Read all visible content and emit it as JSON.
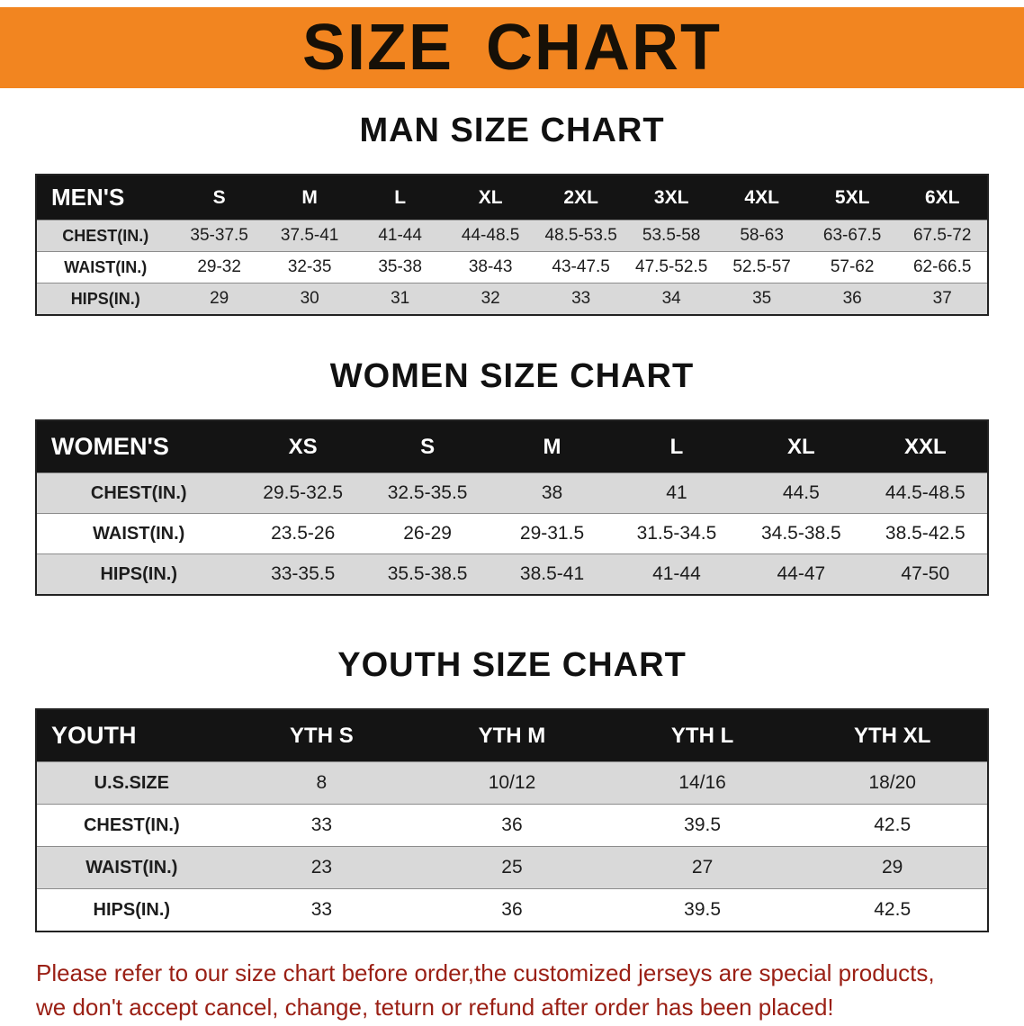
{
  "banner": {
    "title": "SIZE CHART"
  },
  "sections": [
    {
      "id": "men",
      "title": "MAN SIZE CHART",
      "header": [
        "MEN'S",
        "S",
        "M",
        "L",
        "XL",
        "2XL",
        "3XL",
        "4XL",
        "5XL",
        "6XL"
      ],
      "rows": [
        [
          "CHEST(IN.)",
          "35-37.5",
          "37.5-41",
          "41-44",
          "44-48.5",
          "48.5-53.5",
          "53.5-58",
          "58-63",
          "63-67.5",
          "67.5-72"
        ],
        [
          "WAIST(IN.)",
          "29-32",
          "32-35",
          "35-38",
          "38-43",
          "43-47.5",
          "47.5-52.5",
          "52.5-57",
          "57-62",
          "62-66.5"
        ],
        [
          "HIPS(IN.)",
          "29",
          "30",
          "31",
          "32",
          "33",
          "34",
          "35",
          "36",
          "37"
        ]
      ]
    },
    {
      "id": "women",
      "title": "WOMEN SIZE CHART",
      "header": [
        "WOMEN'S",
        "XS",
        "S",
        "M",
        "L",
        "XL",
        "XXL"
      ],
      "rows": [
        [
          "CHEST(IN.)",
          "29.5-32.5",
          "32.5-35.5",
          "38",
          "41",
          "44.5",
          "44.5-48.5"
        ],
        [
          "WAIST(IN.)",
          "23.5-26",
          "26-29",
          "29-31.5",
          "31.5-34.5",
          "34.5-38.5",
          "38.5-42.5"
        ],
        [
          "HIPS(IN.)",
          "33-35.5",
          "35.5-38.5",
          "38.5-41",
          "41-44",
          "44-47",
          "47-50"
        ]
      ]
    },
    {
      "id": "youth",
      "title": "YOUTH SIZE CHART",
      "header": [
        "YOUTH",
        "YTH S",
        "YTH M",
        "YTH L",
        "YTH XL"
      ],
      "rows": [
        [
          "U.S.SIZE",
          "8",
          "10/12",
          "14/16",
          "18/20"
        ],
        [
          "CHEST(IN.)",
          "33",
          "36",
          "39.5",
          "42.5"
        ],
        [
          "WAIST(IN.)",
          "23",
          "25",
          "27",
          "29"
        ],
        [
          "HIPS(IN.)",
          "33",
          "36",
          "39.5",
          "42.5"
        ]
      ]
    }
  ],
  "footer": {
    "line1": "Please refer to our size chart before order,the customized jerseys are special products,",
    "line2": "we don't accept cancel, change, teturn or refund after order has been placed!"
  },
  "colors": {
    "banner_bg": "#f28520",
    "table_header_bg": "#141414",
    "row_alt": "#d9d9d9",
    "footer_text": "#9a1f14"
  }
}
